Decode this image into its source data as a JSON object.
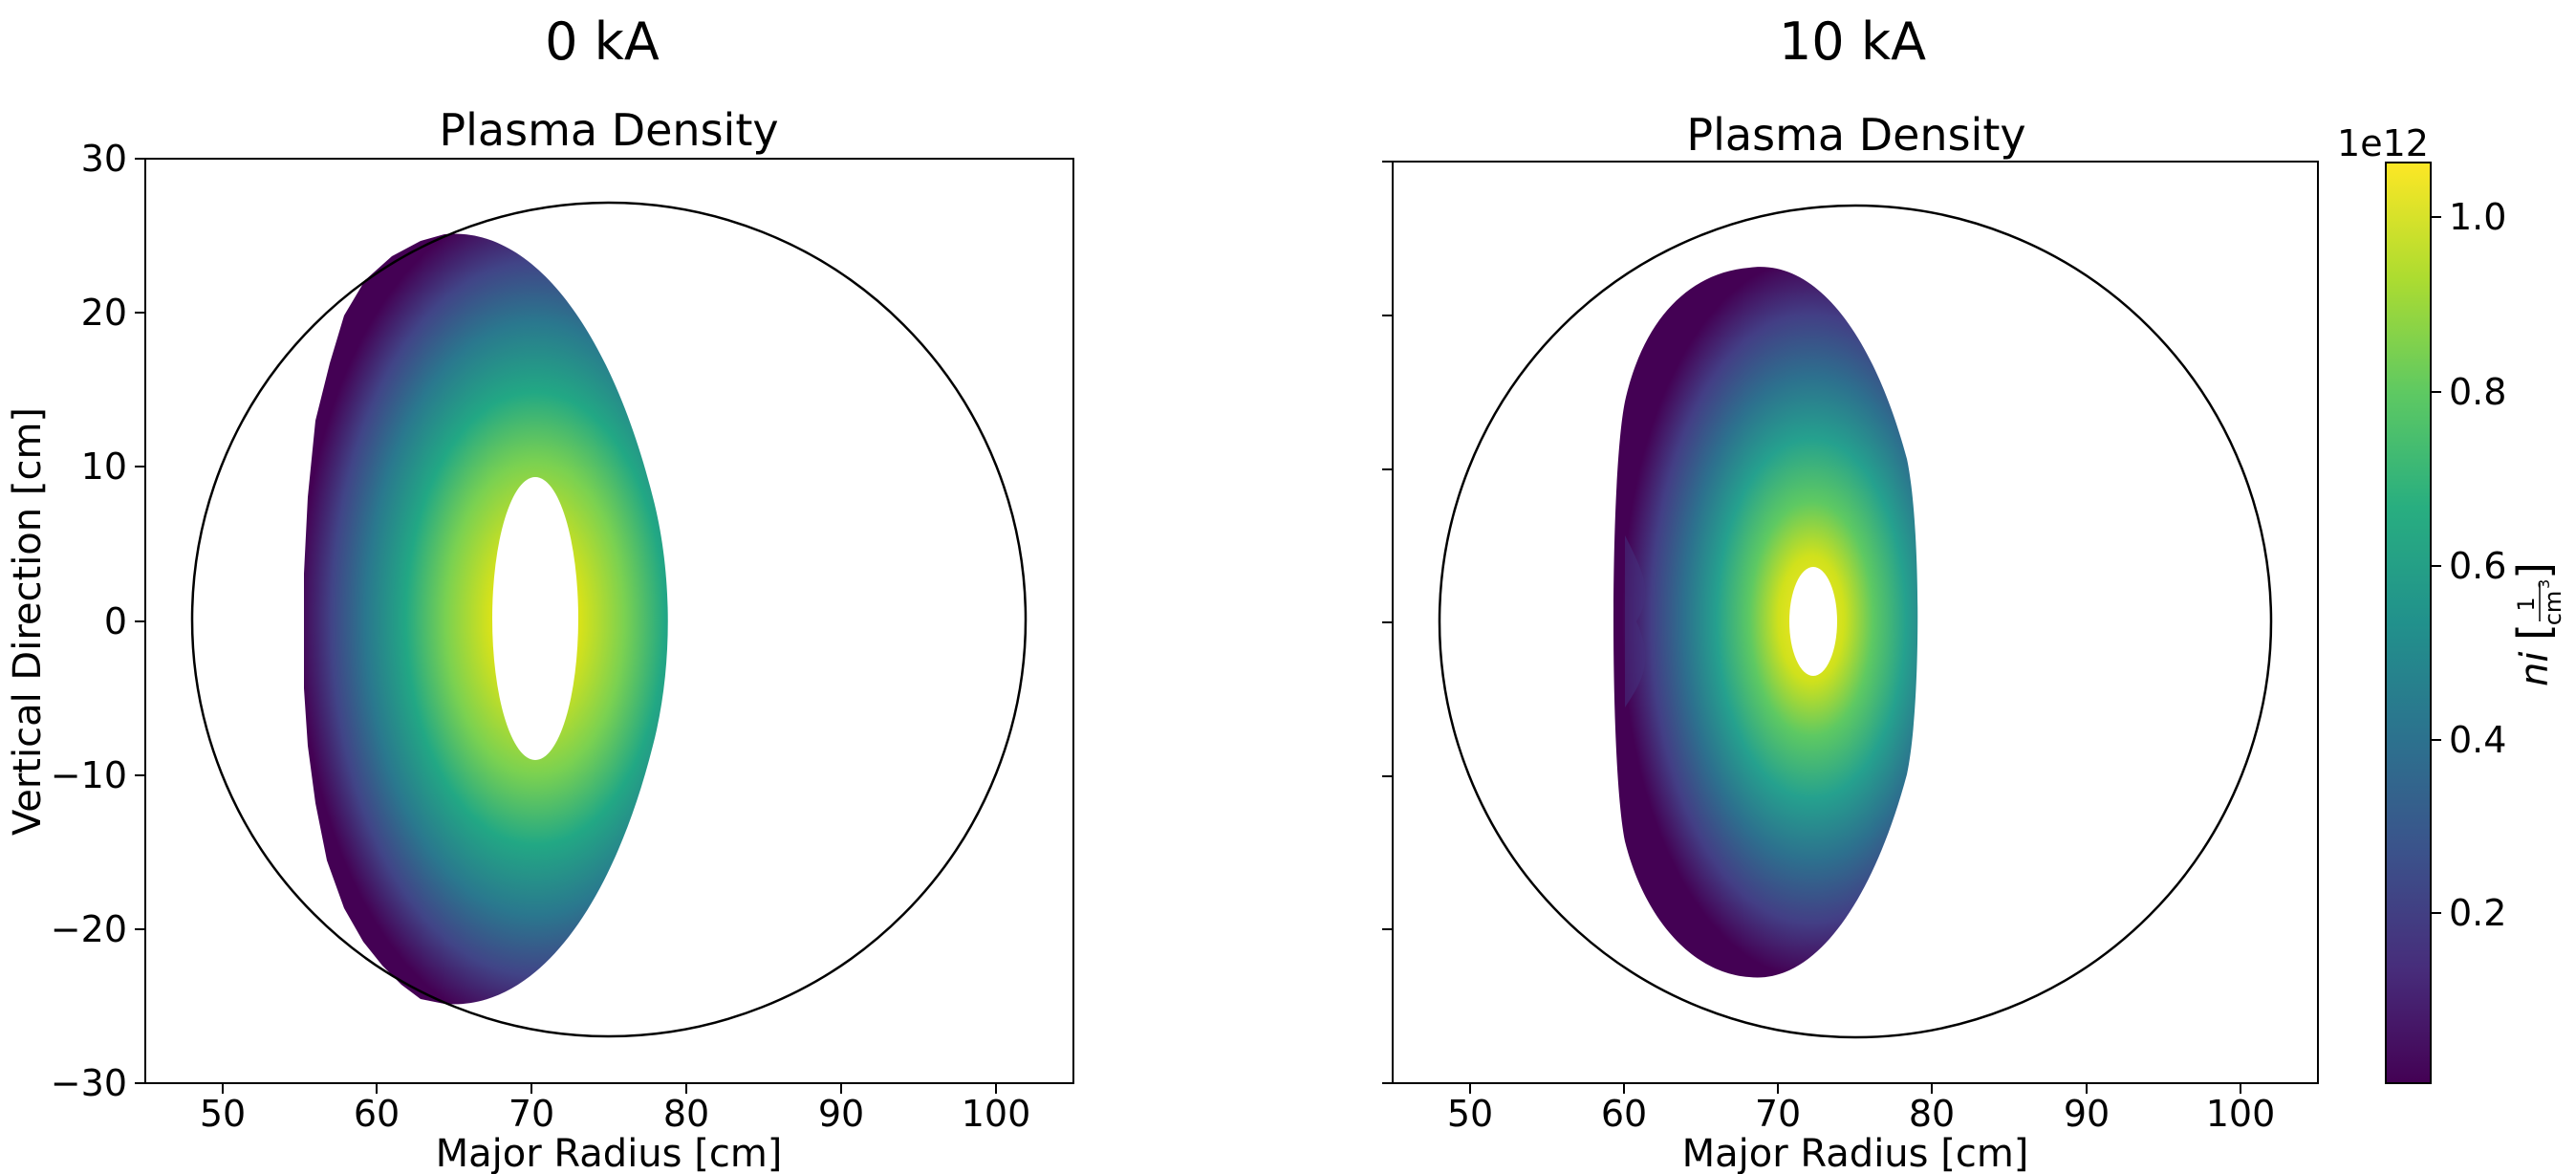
{
  "panels": [
    {
      "suptitle": "0 kA",
      "title": "Plasma Density",
      "xlabel": "Major Radius [cm]",
      "ylabel": "Vertical Direction [cm]"
    },
    {
      "suptitle": "10 kA",
      "title": "Plasma Density",
      "xlabel": "Major Radius [cm]",
      "ylabel": ""
    }
  ],
  "colorbar": {
    "label": "ni",
    "unit_numerator": "1",
    "unit_denominator": "cm",
    "unit_exponent": "3",
    "offset_label": "1e12",
    "ticks": [
      "0.2",
      "0.4",
      "0.6",
      "0.8",
      "1.0"
    ],
    "colormap": "viridis"
  },
  "chart_data": [
    {
      "type": "heatmap",
      "title": "Plasma Density",
      "suptitle": "0 kA",
      "xlabel": "Major Radius [cm]",
      "ylabel": "Vertical Direction [cm]",
      "xlim": [
        45,
        105
      ],
      "ylim": [
        -30,
        30
      ],
      "xticks": [
        50,
        60,
        70,
        80,
        90,
        100
      ],
      "yticks": [
        -30,
        -20,
        -10,
        0,
        10,
        20,
        30
      ],
      "vessel_circle": {
        "center_r": 75,
        "center_z": 0,
        "radius": 27
      },
      "plasma": {
        "r_min": 55.5,
        "r_max": 78.8,
        "z_max": 25,
        "z_min": -25,
        "peak_r": 70.5
      },
      "unrendered_core": {
        "r_min": 68,
        "r_max": 73,
        "z_min": -9.2,
        "z_max": 9.2
      },
      "vmin": 0.0,
      "vmax": 1.05,
      "scale": "1e12",
      "grid": false
    },
    {
      "type": "heatmap",
      "title": "Plasma Density",
      "suptitle": "10 kA",
      "xlabel": "Major Radius [cm]",
      "ylabel": "",
      "xlim": [
        45,
        105
      ],
      "ylim": [
        -30,
        30
      ],
      "xticks": [
        50,
        60,
        70,
        80,
        90,
        100
      ],
      "vessel_circle": {
        "center_r": 75,
        "center_z": 0,
        "radius": 27
      },
      "plasma": {
        "r_min": 59.5,
        "r_max": 78.8,
        "z_max": 22.8,
        "z_min": -23.2,
        "peak_r": 72
      },
      "unrendered_core": {
        "r_min": 70.8,
        "r_max": 73.8,
        "z_min": -3.7,
        "z_max": 3.5
      },
      "vmin": 0.0,
      "vmax": 1.05,
      "scale": "1e12",
      "grid": false
    }
  ]
}
